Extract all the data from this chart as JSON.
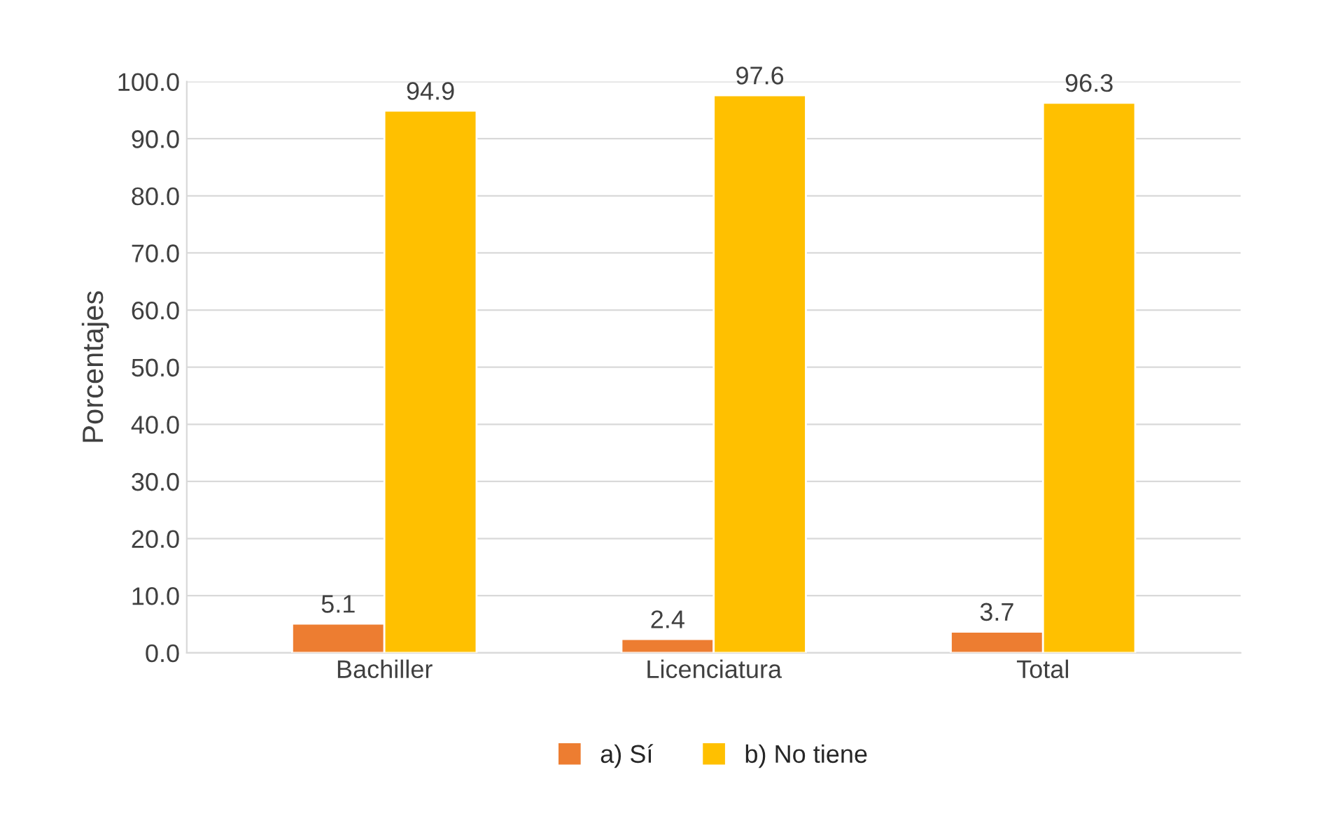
{
  "chart_data": {
    "type": "bar",
    "categories": [
      "Bachiller",
      "Licenciatura",
      "Total"
    ],
    "series": [
      {
        "name": "a) Sí",
        "color": "#ed7d31",
        "values": [
          5.1,
          2.4,
          3.7
        ]
      },
      {
        "name": "b) No tiene",
        "color": "#ffc000",
        "values": [
          94.9,
          97.6,
          96.3
        ]
      }
    ],
    "ylabel": "Porcentajes",
    "ylim": [
      0,
      100
    ],
    "yticks": [
      {
        "value": 0,
        "label": "0.0"
      },
      {
        "value": 10,
        "label": "10.0"
      },
      {
        "value": 20,
        "label": "20.0"
      },
      {
        "value": 30,
        "label": "30.0"
      },
      {
        "value": 40,
        "label": "40.0"
      },
      {
        "value": 50,
        "label": "50.0"
      },
      {
        "value": 60,
        "label": "60.0"
      },
      {
        "value": 70,
        "label": "70.0"
      },
      {
        "value": 80,
        "label": "80.0"
      },
      {
        "value": 90,
        "label": "90.0"
      },
      {
        "value": 100,
        "label": "100.0"
      }
    ],
    "grid": "y",
    "legend": "bottom",
    "data_labels": true
  }
}
